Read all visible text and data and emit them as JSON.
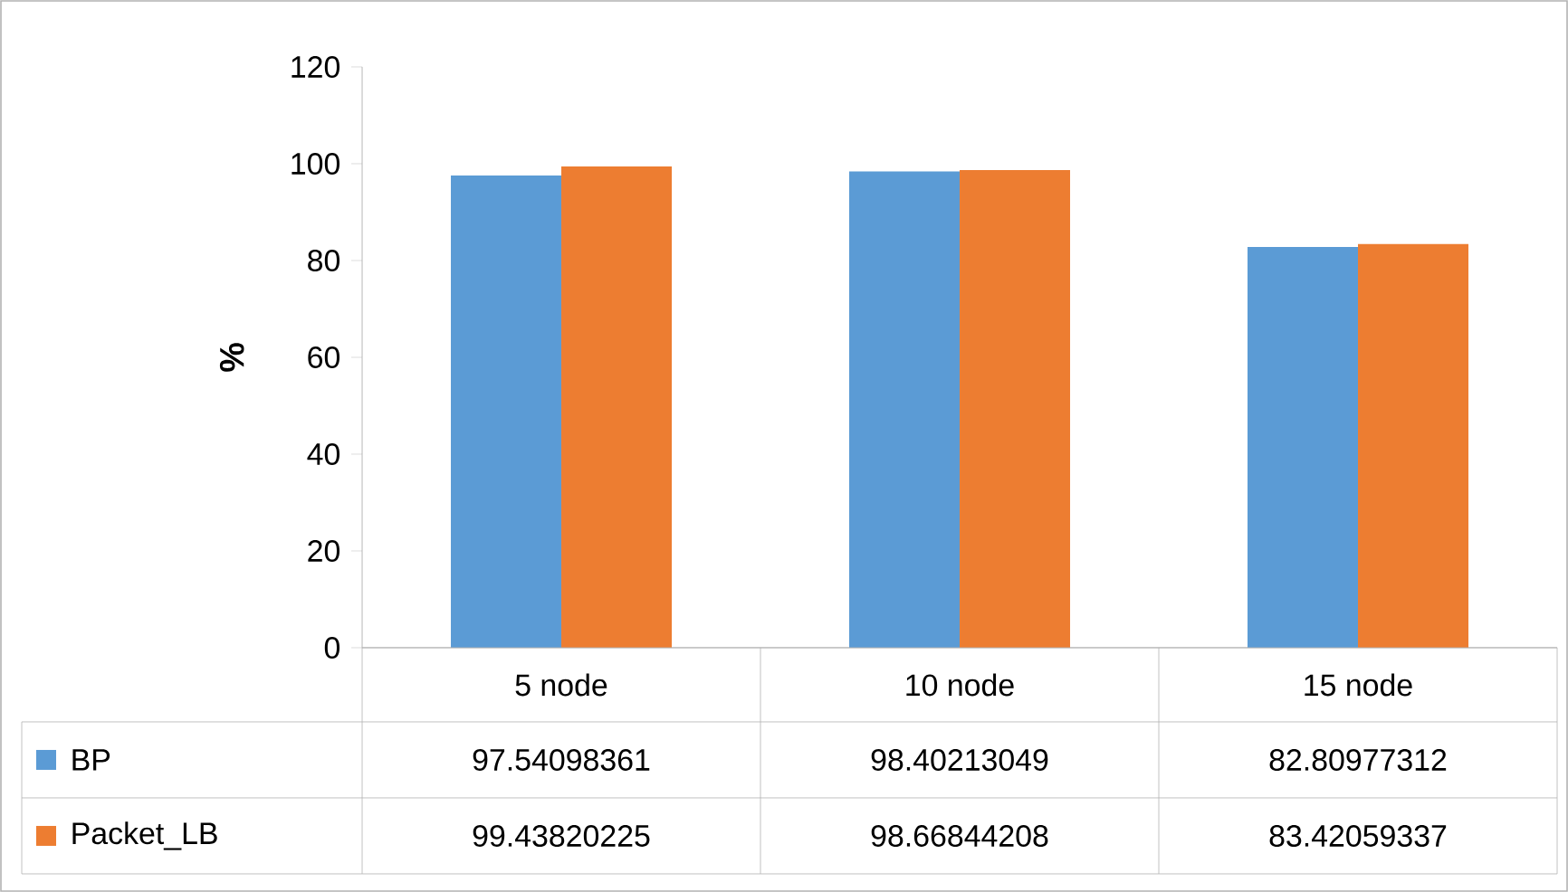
{
  "chart_data": {
    "type": "bar",
    "ylabel": "%",
    "categories": [
      "5 node",
      "10 node",
      "15 node"
    ],
    "series": [
      {
        "name": "BP",
        "color": "#5b9bd5",
        "values": [
          97.54098361,
          98.40213049,
          82.80977312
        ]
      },
      {
        "name": "Packet_LB",
        "color": "#ed7d31",
        "values": [
          99.43820225,
          98.66844208,
          83.42059337
        ]
      }
    ],
    "ylim": [
      0,
      120
    ],
    "yticks": [
      0,
      20,
      40,
      60,
      80,
      100,
      120
    ],
    "grid": false,
    "legend": "bottom",
    "data_labels": true
  }
}
